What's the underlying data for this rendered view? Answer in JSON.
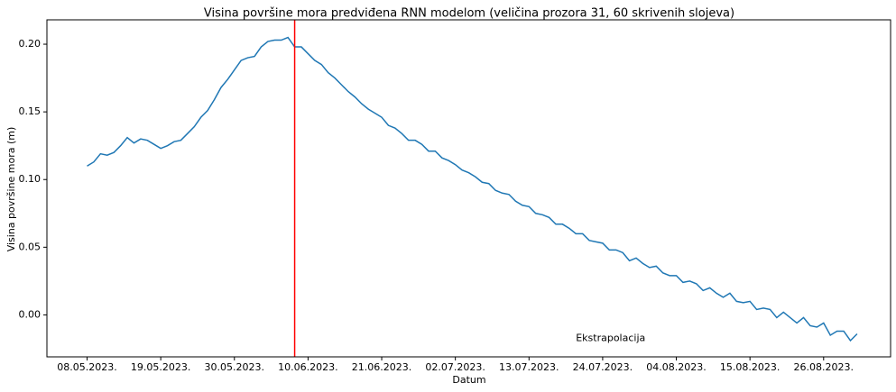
{
  "chart_data": {
    "type": "line",
    "title": "Visina površine mora predviđena RNN modelom (veličina prozora 31, 60 skrivenih slojeva)",
    "xlabel": "Datum",
    "ylabel": "Visina površine mora (m)",
    "x": [
      "2023-05-08",
      "2023-05-09",
      "2023-05-10",
      "2023-05-11",
      "2023-05-12",
      "2023-05-13",
      "2023-05-14",
      "2023-05-15",
      "2023-05-16",
      "2023-05-17",
      "2023-05-18",
      "2023-05-19",
      "2023-05-20",
      "2023-05-21",
      "2023-05-22",
      "2023-05-23",
      "2023-05-24",
      "2023-05-25",
      "2023-05-26",
      "2023-05-27",
      "2023-05-28",
      "2023-05-29",
      "2023-05-30",
      "2023-05-31",
      "2023-06-01",
      "2023-06-02",
      "2023-06-03",
      "2023-06-04",
      "2023-06-05",
      "2023-06-06",
      "2023-06-07",
      "2023-06-08",
      "2023-06-09",
      "2023-06-10",
      "2023-06-11",
      "2023-06-12",
      "2023-06-13",
      "2023-06-14",
      "2023-06-15",
      "2023-06-16",
      "2023-06-17",
      "2023-06-18",
      "2023-06-19",
      "2023-06-20",
      "2023-06-21",
      "2023-06-22",
      "2023-06-23",
      "2023-06-24",
      "2023-06-25",
      "2023-06-26",
      "2023-06-27",
      "2023-06-28",
      "2023-06-29",
      "2023-06-30",
      "2023-07-01",
      "2023-07-02",
      "2023-07-03",
      "2023-07-04",
      "2023-07-05",
      "2023-07-06",
      "2023-07-07",
      "2023-07-08",
      "2023-07-09",
      "2023-07-10",
      "2023-07-11",
      "2023-07-12",
      "2023-07-13",
      "2023-07-14",
      "2023-07-15",
      "2023-07-16",
      "2023-07-17",
      "2023-07-18",
      "2023-07-19",
      "2023-07-20",
      "2023-07-21",
      "2023-07-22",
      "2023-07-23",
      "2023-07-24",
      "2023-07-25",
      "2023-07-26",
      "2023-07-27",
      "2023-07-28",
      "2023-07-29",
      "2023-07-30",
      "2023-07-31",
      "2023-08-01",
      "2023-08-02",
      "2023-08-03",
      "2023-08-04",
      "2023-08-05",
      "2023-08-06",
      "2023-08-07",
      "2023-08-08",
      "2023-08-09",
      "2023-08-10",
      "2023-08-11",
      "2023-08-12",
      "2023-08-13",
      "2023-08-14",
      "2023-08-15",
      "2023-08-16",
      "2023-08-17",
      "2023-08-18",
      "2023-08-19",
      "2023-08-20",
      "2023-08-21",
      "2023-08-22",
      "2023-08-23",
      "2023-08-24",
      "2023-08-25",
      "2023-08-26",
      "2023-08-27",
      "2023-08-28",
      "2023-08-29",
      "2023-08-30",
      "2023-08-31"
    ],
    "series": [
      {
        "color": "#1f77b4",
        "values": [
          0.11,
          0.113,
          0.119,
          0.118,
          0.12,
          0.125,
          0.131,
          0.127,
          0.13,
          0.129,
          0.126,
          0.123,
          0.125,
          0.128,
          0.129,
          0.134,
          0.139,
          0.146,
          0.151,
          0.159,
          0.168,
          0.174,
          0.181,
          0.188,
          0.19,
          0.191,
          0.198,
          0.202,
          0.203,
          0.203,
          0.205,
          0.198,
          0.198,
          0.193,
          0.188,
          0.185,
          0.179,
          0.175,
          0.17,
          0.165,
          0.161,
          0.156,
          0.152,
          0.149,
          0.146,
          0.14,
          0.138,
          0.134,
          0.129,
          0.129,
          0.126,
          0.121,
          0.121,
          0.116,
          0.114,
          0.111,
          0.107,
          0.105,
          0.102,
          0.098,
          0.097,
          0.092,
          0.09,
          0.089,
          0.084,
          0.081,
          0.08,
          0.075,
          0.074,
          0.072,
          0.067,
          0.067,
          0.064,
          0.06,
          0.06,
          0.055,
          0.054,
          0.053,
          0.048,
          0.048,
          0.046,
          0.04,
          0.042,
          0.038,
          0.035,
          0.036,
          0.031,
          0.029,
          0.029,
          0.024,
          0.025,
          0.023,
          0.018,
          0.02,
          0.016,
          0.013,
          0.016,
          0.01,
          0.009,
          0.01,
          0.004,
          0.005,
          0.004,
          -0.002,
          0.002,
          -0.002,
          -0.006,
          -0.002,
          -0.008,
          -0.009,
          -0.006,
          -0.015,
          -0.012,
          -0.012,
          -0.019,
          -0.014
        ]
      }
    ],
    "xlim": [
      "2023-05-02",
      "2023-09-05"
    ],
    "ylim": [
      -0.031,
      0.218
    ],
    "xticks": [
      {
        "value": "2023-05-08",
        "label": "08.05.2023."
      },
      {
        "value": "2023-05-19",
        "label": "19.05.2023."
      },
      {
        "value": "2023-05-30",
        "label": "30.05.2023."
      },
      {
        "value": "2023-06-10",
        "label": "10.06.2023."
      },
      {
        "value": "2023-06-21",
        "label": "21.06.2023."
      },
      {
        "value": "2023-07-02",
        "label": "02.07.2023."
      },
      {
        "value": "2023-07-13",
        "label": "13.07.2023."
      },
      {
        "value": "2023-07-24",
        "label": "24.07.2023."
      },
      {
        "value": "2023-08-04",
        "label": "04.08.2023."
      },
      {
        "value": "2023-08-15",
        "label": "15.08.2023."
      },
      {
        "value": "2023-08-26",
        "label": "26.08.2023."
      }
    ],
    "yticks": [
      {
        "value": 0,
        "label": "0.00"
      },
      {
        "value": 0.05,
        "label": "0.05"
      },
      {
        "value": 0.1,
        "label": "0.10"
      },
      {
        "value": 0.15,
        "label": "0.15"
      },
      {
        "value": 0.2,
        "label": "0.20"
      }
    ],
    "vline": {
      "x": "2023-06-08",
      "color": "#ff0000"
    },
    "annotation": {
      "text": "Ekstrapolacija",
      "x": "2023-07-20",
      "y": -0.0175,
      "color": "#ff0000"
    }
  }
}
